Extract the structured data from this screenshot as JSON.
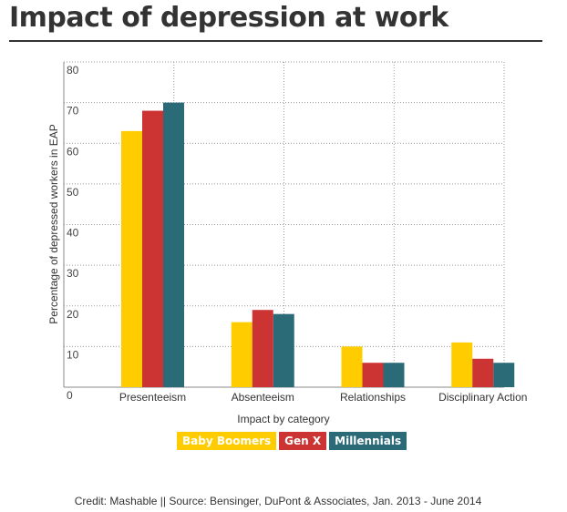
{
  "page": {
    "title": "Impact of depression at work",
    "credit": "Credit: Mashable || Source: Bensinger, DuPont & Associates, Jan. 2013 - June 2014"
  },
  "chart_data": {
    "type": "bar",
    "title": "Impact of depression at work",
    "xlabel": "Impact by category",
    "ylabel": "Percentage of depressed workers in EAP",
    "ylim": [
      0,
      80
    ],
    "yticks": [
      0,
      10,
      20,
      30,
      40,
      50,
      60,
      70,
      80
    ],
    "grid": true,
    "legend_position": "bottom",
    "categories": [
      "Presenteeism",
      "Absenteeism",
      "Relationships",
      "Disciplinary Action"
    ],
    "series": [
      {
        "name": "Baby Boomers",
        "color": "#FFCC00",
        "values": [
          63,
          16,
          10,
          11
        ]
      },
      {
        "name": "Gen X",
        "color": "#CC3333",
        "values": [
          68,
          19,
          6,
          7
        ]
      },
      {
        "name": "Millennials",
        "color": "#2B6B78",
        "values": [
          70,
          18,
          6,
          6
        ]
      }
    ]
  }
}
